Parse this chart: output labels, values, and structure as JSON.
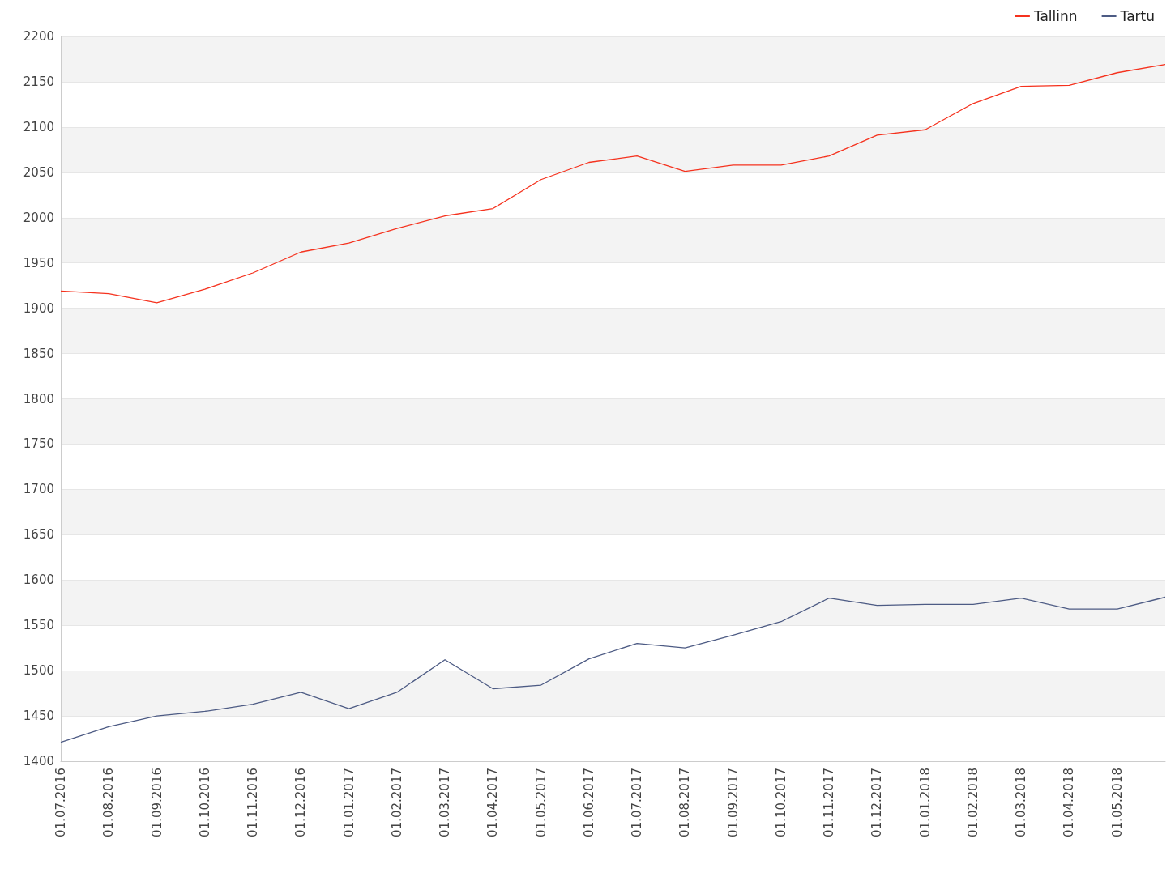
{
  "chart_data": {
    "type": "line",
    "categories": [
      "01.07.2016",
      "01.08.2016",
      "01.09.2016",
      "01.10.2016",
      "01.11.2016",
      "01.12.2016",
      "01.01.2017",
      "01.02.2017",
      "01.03.2017",
      "01.04.2017",
      "01.05.2017",
      "01.06.2017",
      "01.07.2017",
      "01.08.2017",
      "01.09.2017",
      "01.10.2017",
      "01.11.2017",
      "01.12.2017",
      "01.01.2018",
      "01.02.2018",
      "01.03.2018",
      "01.04.2018",
      "01.05.2018",
      null
    ],
    "series": [
      {
        "name": "Tallinn",
        "color": "#f5321e",
        "values": [
          1919,
          1916,
          1906,
          1921,
          1939,
          1962,
          1972,
          1988,
          2002,
          2010,
          2042,
          2061,
          2068,
          2051,
          2058,
          2058,
          2068,
          2091,
          2097,
          2126,
          2145,
          2146,
          2160,
          2169
        ]
      },
      {
        "name": "Tartu",
        "color": "#4d5b84",
        "values": [
          1421,
          1438,
          1450,
          1455,
          1463,
          1476,
          1458,
          1476,
          1512,
          1480,
          1484,
          1513,
          1530,
          1525,
          1539,
          1554,
          1580,
          1572,
          1573,
          1573,
          1580,
          1568,
          1568,
          1581
        ]
      }
    ],
    "ylim": [
      1400,
      2200
    ],
    "yticks": [
      1400,
      1450,
      1500,
      1550,
      1600,
      1650,
      1700,
      1750,
      1800,
      1850,
      1900,
      1950,
      2000,
      2050,
      2100,
      2150,
      2200
    ],
    "grid": "y",
    "legend": "top right",
    "marker": "none",
    "line_style": "solid"
  }
}
